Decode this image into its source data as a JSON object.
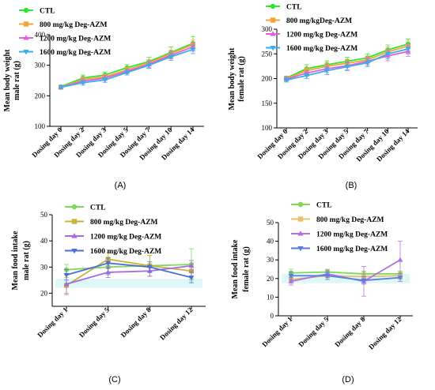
{
  "chart_data": [
    {
      "type": "line",
      "panel_label": "(A)",
      "ylabel_lines": [
        "Mean body weight",
        "male rat (g)"
      ],
      "categories": [
        "Dosing day 0",
        "Dosing day 2",
        "Dosing day 3",
        "Dosing day 5",
        "Dosing day 7",
        "Dosing day 10",
        "Dosing day 14"
      ],
      "ylim": [
        100,
        400
      ],
      "yticks": [
        100,
        200,
        300,
        400
      ],
      "series": [
        {
          "name": "CTL",
          "color": "#2ee62e",
          "marker": "circle",
          "values": [
            230,
            258,
            268,
            292,
            312,
            342,
            372
          ],
          "errors": [
            5,
            10,
            10,
            10,
            14,
            18,
            22
          ]
        },
        {
          "name": "800 mg/kg Deg-AZM",
          "color": "#f5a43c",
          "marker": "square",
          "values": [
            228,
            253,
            262,
            285,
            308,
            338,
            368
          ],
          "errors": [
            5,
            8,
            8,
            9,
            10,
            12,
            14
          ]
        },
        {
          "name": "1200 mg/kg Deg-AZM",
          "color": "#e060e0",
          "marker": "triangle",
          "values": [
            228,
            248,
            258,
            280,
            303,
            333,
            360
          ],
          "errors": [
            5,
            8,
            8,
            8,
            10,
            12,
            14
          ]
        },
        {
          "name": "1600 mg/kg Deg-AZM",
          "color": "#3aaee8",
          "marker": "triangle-down",
          "values": [
            228,
            243,
            252,
            276,
            300,
            328,
            352
          ],
          "errors": [
            5,
            8,
            8,
            8,
            10,
            12,
            14
          ]
        }
      ]
    },
    {
      "type": "line",
      "panel_label": "(B)",
      "ylabel_lines": [
        "Mean body weight",
        "female rat (g)"
      ],
      "categories": [
        "Dosing day 0",
        "Dosing day 2",
        "Dosing day 3",
        "Dosing day 5",
        "Dosing day 7",
        "Dosing day 10",
        "Dosing day 14"
      ],
      "ylim": [
        100,
        300
      ],
      "yticks": [
        100,
        150,
        200,
        250,
        300
      ],
      "series": [
        {
          "name": "CTL",
          "color": "#2ee62e",
          "marker": "circle",
          "values": [
            201,
            220,
            228,
            235,
            242,
            258,
            270
          ],
          "errors": [
            4,
            8,
            8,
            8,
            8,
            10,
            10
          ]
        },
        {
          "name": "800 mg/kgDeg-AZM",
          "color": "#f5a43c",
          "marker": "square",
          "values": [
            200,
            216,
            225,
            231,
            238,
            254,
            266
          ],
          "errors": [
            4,
            6,
            8,
            8,
            8,
            10,
            10
          ]
        },
        {
          "name": "1200 mg/kg Deg-AZM",
          "color": "#e060e0",
          "marker": "triangle",
          "values": [
            199,
            211,
            220,
            226,
            235,
            246,
            255
          ],
          "errors": [
            4,
            6,
            8,
            8,
            8,
            10,
            10
          ]
        },
        {
          "name": "1600 mg/kg Deg-AZM",
          "color": "#3aaee8",
          "marker": "triangle-down",
          "values": [
            197,
            206,
            216,
            224,
            232,
            250,
            260
          ],
          "errors": [
            4,
            6,
            8,
            8,
            8,
            10,
            10
          ]
        }
      ]
    },
    {
      "type": "line",
      "panel_label": "(C)",
      "ylabel_lines": [
        "Mean food intake",
        "male rat  (g)"
      ],
      "categories": [
        "Dosing day 1",
        "Dosing day 5",
        "Dosing day 8",
        "Dosing day 12"
      ],
      "ylim": [
        15,
        50
      ],
      "yticks": [
        20,
        30,
        40,
        50
      ],
      "series": [
        {
          "name": "CTL",
          "color": "#7ed957",
          "marker": "circle",
          "values": [
            29,
            30,
            30.5,
            31
          ],
          "errors": [
            2,
            3,
            4,
            6
          ]
        },
        {
          "name": "800 mg/kg Deg-AZM",
          "color": "#c9b23a",
          "marker": "square",
          "values": [
            23,
            33,
            30.5,
            28.5
          ],
          "errors": [
            3,
            2.5,
            4,
            3
          ]
        },
        {
          "name": "1200 mg/kg Deg-AZM",
          "color": "#a36be0",
          "marker": "triangle",
          "values": [
            23.5,
            28,
            28.5,
            30.5
          ],
          "errors": [
            4,
            2,
            2,
            2
          ]
        },
        {
          "name": "1600 mg/kg Deg-AZM",
          "color": "#4a6ed8",
          "marker": "triangle-down",
          "values": [
            27,
            31.5,
            30,
            26
          ],
          "errors": [
            2,
            2,
            2,
            2
          ]
        }
      ]
    },
    {
      "type": "line",
      "panel_label": "(D)",
      "ylabel_lines": [
        "Mean food intake",
        "female rat (g)"
      ],
      "categories": [
        "Dosing day 1",
        "Dosing day 5",
        "Dosing day 8",
        "Dosing day 12"
      ],
      "ylim": [
        0,
        50
      ],
      "yticks": [
        0,
        10,
        20,
        30,
        40,
        50
      ],
      "series": [
        {
          "name": "CTL",
          "color": "#7ed957",
          "marker": "circle",
          "values": [
            23,
            23.5,
            22.5,
            22.5
          ],
          "errors": [
            2,
            1.5,
            1.5,
            1.5
          ]
        },
        {
          "name": "800 mg/kg Deg-AZM",
          "color": "#e8c070",
          "marker": "square",
          "values": [
            19.5,
            21.5,
            21,
            21.5
          ],
          "errors": [
            2,
            2,
            2,
            2
          ]
        },
        {
          "name": "1200 mg/kg Deg-AZM",
          "color": "#b46fe0",
          "marker": "triangle",
          "values": [
            18.5,
            22.5,
            18.5,
            30
          ],
          "errors": [
            2,
            2,
            8,
            10
          ]
        },
        {
          "name": "1600 mg/kg Deg-AZM",
          "color": "#5a7ee0",
          "marker": "triangle-down",
          "values": [
            21.5,
            21.5,
            19,
            20.5
          ],
          "errors": [
            2,
            2,
            2,
            2
          ]
        }
      ]
    }
  ]
}
